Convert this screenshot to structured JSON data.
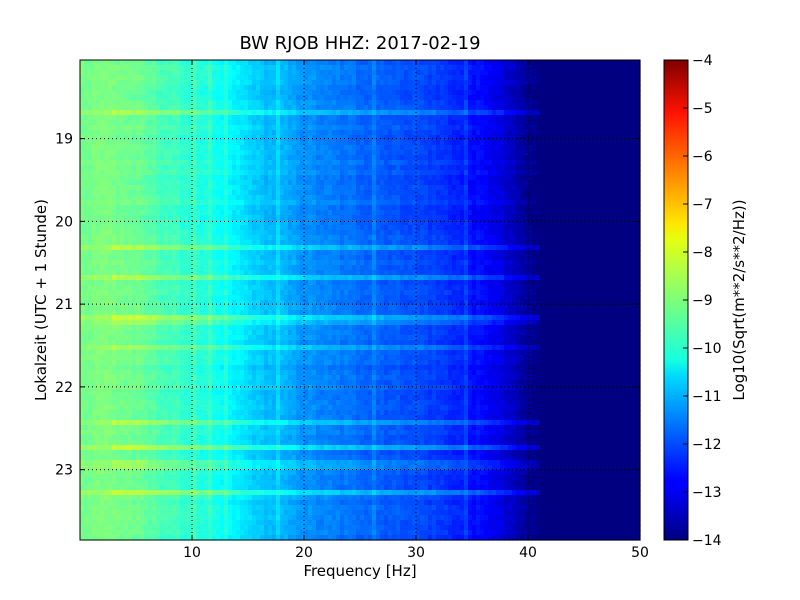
{
  "chart_data": {
    "type": "heatmap",
    "title": "BW RJOB HHZ: 2017-02-19",
    "xlabel": "Frequency [Hz]",
    "ylabel": "Lokalzeit (UTC + 1 Stunde)",
    "xlim": [
      0,
      50
    ],
    "ylim_hours": [
      18.05,
      23.85
    ],
    "y_inverted": true,
    "x_ticks": [
      10,
      20,
      30,
      40,
      50
    ],
    "y_ticks": [
      19,
      20,
      21,
      22,
      23
    ],
    "grid": true,
    "colormap": "jet",
    "colorbar": {
      "label": "Log10(Sqrt(m**2/s**2/Hz))",
      "min": -14,
      "max": -4,
      "ticks": [
        -4,
        -5,
        -6,
        -7,
        -8,
        -9,
        -10,
        -11,
        -12,
        -13,
        -14
      ]
    },
    "profile": {
      "frequency_hz": [
        0,
        2,
        5,
        8,
        10,
        12,
        14,
        16,
        18,
        20,
        22,
        25,
        28,
        30,
        33,
        35,
        37,
        38,
        39,
        40,
        41,
        42,
        45,
        50
      ],
      "level": [
        -9.1,
        -9.0,
        -9.2,
        -9.6,
        -9.8,
        -10.1,
        -10.4,
        -10.8,
        -11.0,
        -11.3,
        -11.5,
        -11.7,
        -11.9,
        -12.0,
        -12.3,
        -12.6,
        -12.9,
        -13.2,
        -13.5,
        -13.8,
        -14.0,
        -14.0,
        -14.0,
        -14.0
      ]
    }
  }
}
